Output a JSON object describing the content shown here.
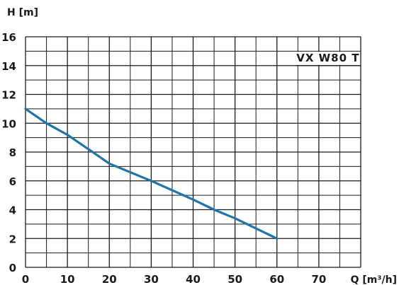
{
  "chart_data": {
    "type": "line",
    "title": "",
    "model_label": "VX W80 T",
    "ylabel": "H [m]",
    "xlabel": "Q [m³/h]",
    "xlim": [
      0,
      80
    ],
    "ylim": [
      0,
      16
    ],
    "x_ticks": [
      0,
      10,
      20,
      30,
      40,
      50,
      60,
      70
    ],
    "y_ticks": [
      0,
      2,
      4,
      6,
      8,
      10,
      12,
      14,
      16
    ],
    "grid": true,
    "series": [
      {
        "color": "#1f74aa",
        "x": [
          0,
          5,
          10,
          15,
          20,
          30,
          40,
          45,
          50,
          60
        ],
        "y": [
          11.0,
          10.0,
          9.2,
          8.2,
          7.2,
          6.0,
          4.7,
          4.0,
          3.4,
          2.0
        ]
      }
    ]
  }
}
